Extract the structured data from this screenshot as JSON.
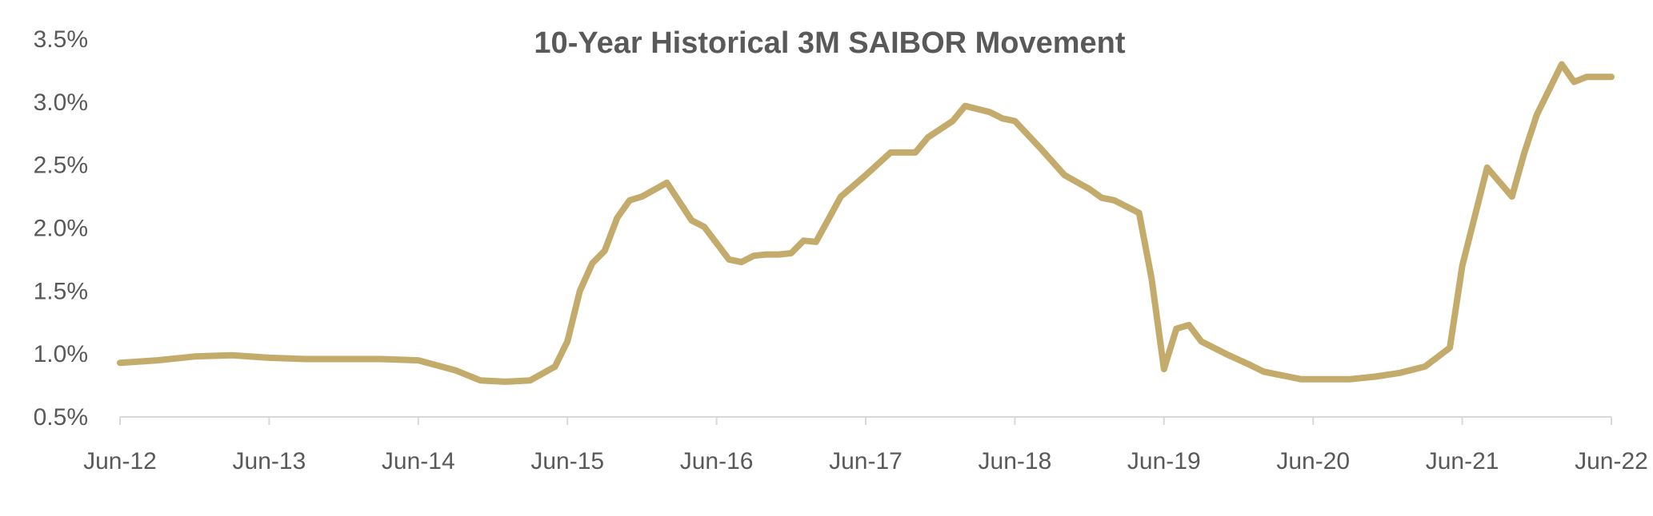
{
  "chart_data": {
    "type": "line",
    "title": "10-Year Historical 3M SAIBOR Movement",
    "xlabel": "",
    "ylabel": "",
    "x_tick_labels": [
      "Jun-12",
      "Jun-13",
      "Jun-14",
      "Jun-15",
      "Jun-16",
      "Jun-17",
      "Jun-18",
      "Jun-19",
      "Jun-20",
      "Jun-21",
      "Jun-22"
    ],
    "y_tick_labels": [
      "0.5%",
      "1.0%",
      "1.5%",
      "2.0%",
      "2.5%",
      "3.0%",
      "3.5%"
    ],
    "ylim": [
      0.5,
      3.5
    ],
    "xlim": [
      "2012-06",
      "2022-06"
    ],
    "grid": false,
    "line_color": "#C3AB6B",
    "axis_color": "#D9D9D9",
    "text_color": "#595959",
    "series": [
      {
        "x": [
          "2012-06",
          "2012-09",
          "2012-12",
          "2013-03",
          "2013-06",
          "2013-09",
          "2013-12",
          "2014-03",
          "2014-06",
          "2014-09",
          "2014-11",
          "2015-01",
          "2015-03",
          "2015-05",
          "2015-06",
          "2015-07",
          "2015-08",
          "2015-09",
          "2015-10",
          "2015-11",
          "2015-12",
          "2016-02",
          "2016-04",
          "2016-05",
          "2016-07",
          "2016-08",
          "2016-09",
          "2016-10",
          "2016-11",
          "2016-12",
          "2017-01",
          "2017-02",
          "2017-04",
          "2017-06",
          "2017-08",
          "2017-10",
          "2017-11",
          "2018-01",
          "2018-02",
          "2018-04",
          "2018-05",
          "2018-06",
          "2018-08",
          "2018-10",
          "2018-12",
          "2019-01",
          "2019-02",
          "2019-04",
          "2019-05",
          "2019-06",
          "2019-07",
          "2019-08",
          "2019-09",
          "2019-11",
          "2020-01",
          "2020-02",
          "2020-03",
          "2020-04",
          "2020-05",
          "2020-06",
          "2020-07",
          "2020-08",
          "2020-09",
          "2020-11",
          "2021-01",
          "2021-03",
          "2021-05",
          "2021-06",
          "2021-08",
          "2021-10",
          "2021-11",
          "2021-12",
          "2022-01",
          "2022-02",
          "2022-03",
          "2022-04",
          "2022-05",
          "2022-06"
        ],
        "y": [
          0.93,
          0.95,
          0.98,
          0.99,
          0.97,
          0.96,
          0.96,
          0.96,
          0.95,
          0.87,
          0.79,
          0.78,
          0.79,
          0.9,
          1.1,
          1.5,
          1.72,
          1.82,
          2.08,
          2.22,
          2.25,
          2.36,
          2.06,
          2.01,
          1.75,
          1.73,
          1.78,
          1.79,
          1.79,
          1.8,
          1.9,
          1.89,
          2.25,
          2.42,
          2.6,
          2.6,
          2.72,
          2.85,
          2.97,
          2.92,
          2.87,
          2.85,
          2.64,
          2.42,
          2.31,
          2.24,
          2.22,
          2.12,
          1.6,
          0.88,
          1.2,
          1.23,
          1.1,
          1.0,
          0.91,
          0.86,
          0.84,
          0.82,
          0.8,
          0.8,
          0.8,
          0.8,
          0.8,
          0.82,
          0.85,
          0.9,
          1.05,
          1.7,
          2.48,
          2.25,
          2.6,
          2.9,
          3.1,
          3.3,
          3.16,
          3.2,
          3.2,
          3.2
        ],
        "values_note_skip": ""
      }
    ]
  }
}
